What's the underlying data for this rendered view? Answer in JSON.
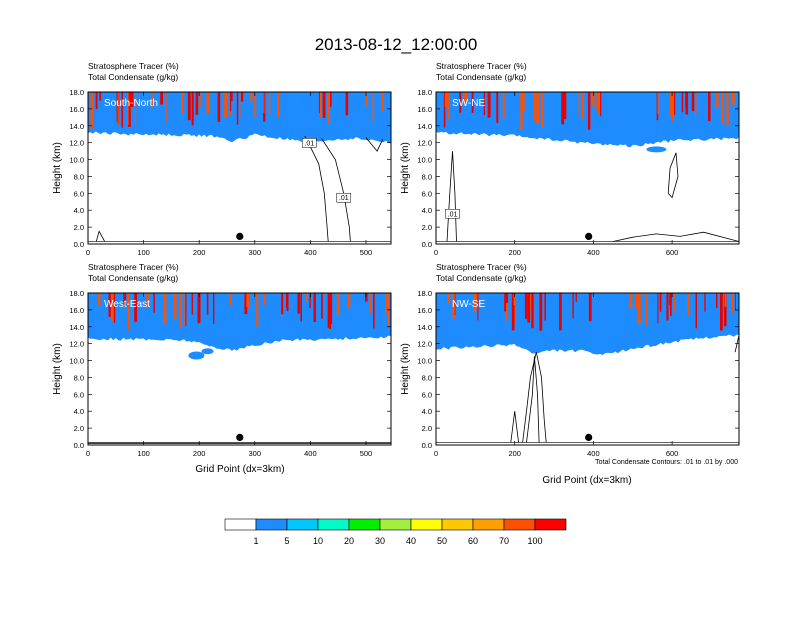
{
  "page_title": "2013-08-12_12:00:00",
  "xlabel": "Grid Point (dx=3km)",
  "ylabel": "Height (km)",
  "contour_note": "Total Condensate Contours: .01 to .01 by .000",
  "colorbar": {
    "ticks": [
      "1",
      "5",
      "10",
      "20",
      "30",
      "40",
      "50",
      "60",
      "70",
      "100"
    ],
    "colors": [
      "#ffffff",
      "#1e8cff",
      "#00c8ff",
      "#00fac8",
      "#00f000",
      "#a0f03c",
      "#ffff00",
      "#ffc800",
      "#ffa000",
      "#ff5000",
      "#ff0000"
    ]
  },
  "chart_data": [
    {
      "type": "contour",
      "panel_label": "South-North",
      "heading1": "Stratosphere Tracer   (%)",
      "heading2": "Total Condensate   (g/kg)",
      "xlim": [
        0,
        545
      ],
      "xticks": [
        "0",
        "100",
        "200",
        "300",
        "400",
        "500"
      ],
      "ylim": [
        0,
        18
      ],
      "yticks": [
        "0.0",
        "2.0",
        "4.0",
        "6.0",
        "8.0",
        "10.0",
        "12.0",
        "14.0",
        "16.0",
        "18.0"
      ],
      "marker_x": 273,
      "contour_labels": [
        ".01",
        ".01"
      ],
      "tropopause_km": [
        [
          0,
          13.6
        ],
        [
          80,
          13.4
        ],
        [
          160,
          13.3
        ],
        [
          220,
          13.2
        ],
        [
          260,
          12.6
        ],
        [
          280,
          12.9
        ],
        [
          300,
          13.4
        ],
        [
          330,
          13.0
        ],
        [
          360,
          12.8
        ],
        [
          390,
          12.4
        ],
        [
          420,
          12.6
        ],
        [
          450,
          12.8
        ],
        [
          480,
          12.9
        ],
        [
          520,
          12.6
        ],
        [
          545,
          12.4
        ]
      ]
    },
    {
      "type": "contour",
      "panel_label": "SW-NE",
      "heading1": "Stratosphere Tracer   (%)",
      "heading2": "Total Condensate   (g/kg)",
      "xlim": [
        0,
        770
      ],
      "xticks": [
        "0",
        "200",
        "400",
        "600"
      ],
      "ylim": [
        0,
        18
      ],
      "yticks": [
        "0.0",
        "2.0",
        "4.0",
        "6.0",
        "8.0",
        "10.0",
        "12.0",
        "14.0",
        "16.0",
        "18.0"
      ],
      "marker_x": 388,
      "contour_labels": [
        ".01"
      ],
      "tropopause_km": [
        [
          0,
          13.6
        ],
        [
          100,
          13.4
        ],
        [
          200,
          13.2
        ],
        [
          300,
          12.7
        ],
        [
          400,
          12.3
        ],
        [
          500,
          12.0
        ],
        [
          560,
          12.4
        ],
        [
          620,
          12.7
        ],
        [
          700,
          12.8
        ],
        [
          770,
          12.9
        ]
      ]
    },
    {
      "type": "contour",
      "panel_label": "West-East",
      "heading1": "Stratosphere Tracer   (%)",
      "heading2": "Total Condensate   (g/kg)",
      "xlim": [
        0,
        545
      ],
      "xticks": [
        "0",
        "100",
        "200",
        "300",
        "400",
        "500"
      ],
      "ylim": [
        0,
        18
      ],
      "yticks": [
        "0.0",
        "2.0",
        "4.0",
        "6.0",
        "8.0",
        "10.0",
        "12.0",
        "14.0",
        "16.0",
        "18.0"
      ],
      "marker_x": 273,
      "contour_labels": [],
      "tropopause_km": [
        [
          0,
          13.0
        ],
        [
          100,
          12.9
        ],
        [
          180,
          12.8
        ],
        [
          220,
          12.1
        ],
        [
          260,
          11.6
        ],
        [
          300,
          12.2
        ],
        [
          350,
          12.8
        ],
        [
          400,
          12.9
        ],
        [
          460,
          13.0
        ],
        [
          545,
          13.2
        ]
      ]
    },
    {
      "type": "contour",
      "panel_label": "NW-SE",
      "heading1": "Stratosphere Tracer   (%)",
      "heading2": "Total Condensate   (g/kg)",
      "xlim": [
        0,
        770
      ],
      "xticks": [
        "0",
        "200",
        "400",
        "600"
      ],
      "ylim": [
        0,
        18
      ],
      "yticks": [
        "0.0",
        "2.0",
        "4.0",
        "6.0",
        "8.0",
        "10.0",
        "12.0",
        "14.0",
        "16.0",
        "18.0"
      ],
      "marker_x": 388,
      "contour_labels": [],
      "tropopause_km": [
        [
          0,
          11.8
        ],
        [
          100,
          12.0
        ],
        [
          200,
          12.3
        ],
        [
          250,
          11.2
        ],
        [
          300,
          11.6
        ],
        [
          380,
          11.5
        ],
        [
          420,
          11.0
        ],
        [
          500,
          11.8
        ],
        [
          600,
          12.6
        ],
        [
          700,
          13.2
        ],
        [
          770,
          13.4
        ]
      ]
    }
  ]
}
